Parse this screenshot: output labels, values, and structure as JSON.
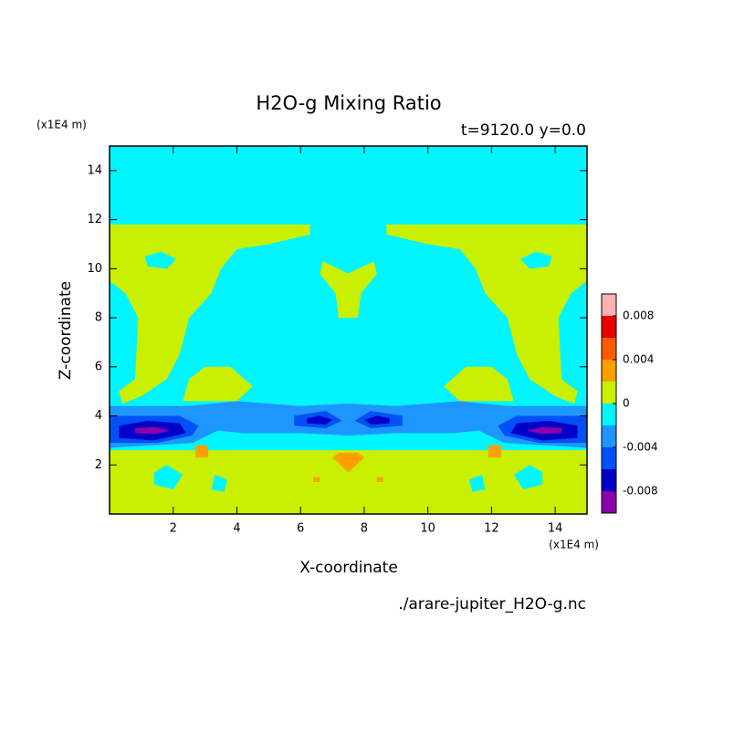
{
  "chart_data": {
    "type": "contour",
    "title": "H2O-g Mixing Ratio",
    "subtitle": "t=9120.0 y=0.0",
    "x_label": "X-coordinate",
    "y_label": "Z-coordinate",
    "x_unit": "(x1E4 m)",
    "y_unit": "(x1E4 m)",
    "source": "./arare-jupiter_H2O-g.nc",
    "xlim": [
      0,
      15
    ],
    "ylim": [
      0,
      15
    ],
    "xticks": [
      2,
      4,
      6,
      8,
      10,
      12,
      14
    ],
    "yticks": [
      2,
      4,
      6,
      8,
      10,
      12,
      14
    ],
    "clevels": [
      -0.01,
      -0.008,
      -0.006,
      -0.004,
      -0.002,
      0,
      0.002,
      0.004,
      0.006,
      0.008,
      0.01
    ],
    "colors": [
      "#8a00a8",
      "#0000c8",
      "#0050f5",
      "#1e96ff",
      "#00f5ff",
      "#c8f000",
      "#ffa000",
      "#ff5a00",
      "#e80000",
      "#ffb0b0"
    ],
    "cticks": [
      -0.008,
      -0.004,
      0,
      0.004,
      0.008
    ]
  }
}
